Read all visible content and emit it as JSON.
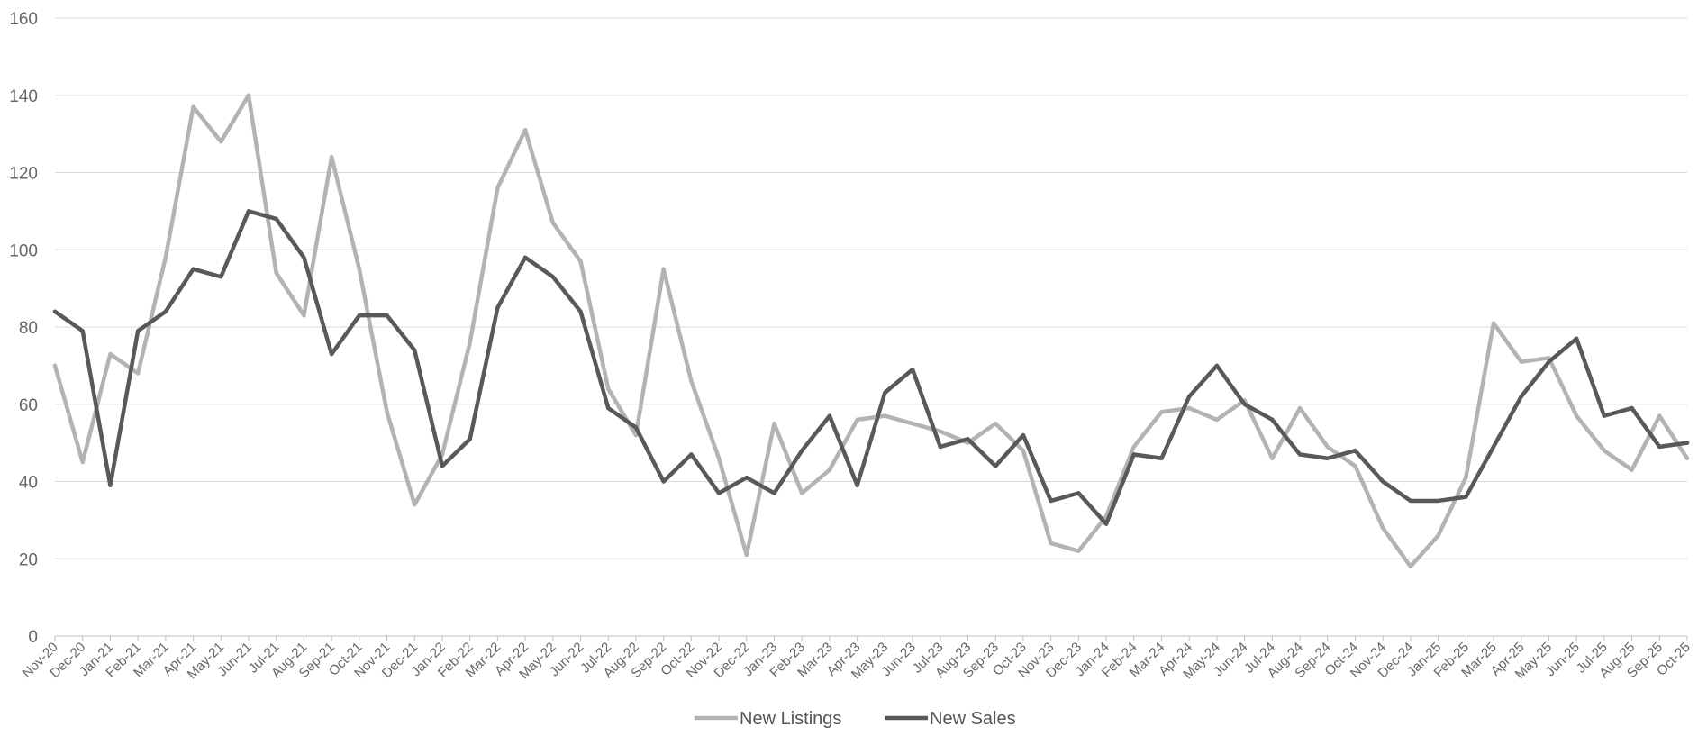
{
  "chart_data": {
    "type": "line",
    "title": "",
    "xlabel": "",
    "ylabel": "",
    "ylim": [
      0,
      160
    ],
    "yticks": [
      0,
      20,
      40,
      60,
      80,
      100,
      120,
      140,
      160
    ],
    "grid": true,
    "legend_position": "bottom-center",
    "categories": [
      "Nov-20",
      "Dec-20",
      "Jan-21",
      "Feb-21",
      "Mar-21",
      "Apr-21",
      "May-21",
      "Jun-21",
      "Jul-21",
      "Aug-21",
      "Sep-21",
      "Oct-21",
      "Nov-21",
      "Dec-21",
      "Jan-22",
      "Feb-22",
      "Mar-22",
      "Apr-22",
      "May-22",
      "Jun-22",
      "Jul-22",
      "Aug-22",
      "Sep-22",
      "Oct-22",
      "Nov-22",
      "Dec-22",
      "Jan-23",
      "Feb-23",
      "Mar-23",
      "Apr-23",
      "May-23",
      "Jun-23",
      "Jul-23",
      "Aug-23",
      "Sep-23",
      "Oct-23",
      "Nov-23",
      "Dec-23",
      "Jan-24",
      "Feb-24",
      "Mar-24",
      "Apr-24",
      "May-24",
      "Jun-24",
      "Jul-24",
      "Aug-24",
      "Sep-24",
      "Oct-24",
      "Nov-24",
      "Dec-24",
      "Jan-25",
      "Feb-25",
      "Mar-25",
      "Apr-25",
      "May-25",
      "Jun-25",
      "Jul-25",
      "Aug-25",
      "Sep-25",
      "Oct-25"
    ],
    "series": [
      {
        "name": "New Listings",
        "color": "#b3b3b3",
        "values": [
          70,
          45,
          73,
          68,
          98,
          137,
          128,
          140,
          94,
          83,
          124,
          95,
          58,
          34,
          47,
          76,
          116,
          131,
          107,
          97,
          64,
          52,
          95,
          66,
          46,
          21,
          55,
          37,
          43,
          56,
          57,
          55,
          53,
          50,
          55,
          48,
          24,
          22,
          31,
          49,
          58,
          59,
          56,
          61,
          46,
          59,
          49,
          44,
          28,
          18,
          26,
          41,
          81,
          71,
          72,
          57,
          48,
          43,
          57,
          46
        ]
      },
      {
        "name": "New Sales",
        "color": "#595959",
        "values": [
          84,
          79,
          39,
          79,
          84,
          95,
          93,
          110,
          108,
          98,
          73,
          83,
          83,
          74,
          44,
          51,
          85,
          98,
          93,
          84,
          59,
          54,
          40,
          47,
          37,
          41,
          37,
          48,
          57,
          39,
          63,
          69,
          49,
          51,
          44,
          52,
          35,
          37,
          29,
          47,
          46,
          62,
          70,
          60,
          56,
          47,
          46,
          48,
          40,
          35,
          35,
          36,
          49,
          62,
          71,
          77,
          57,
          59,
          49,
          50
        ]
      }
    ]
  }
}
